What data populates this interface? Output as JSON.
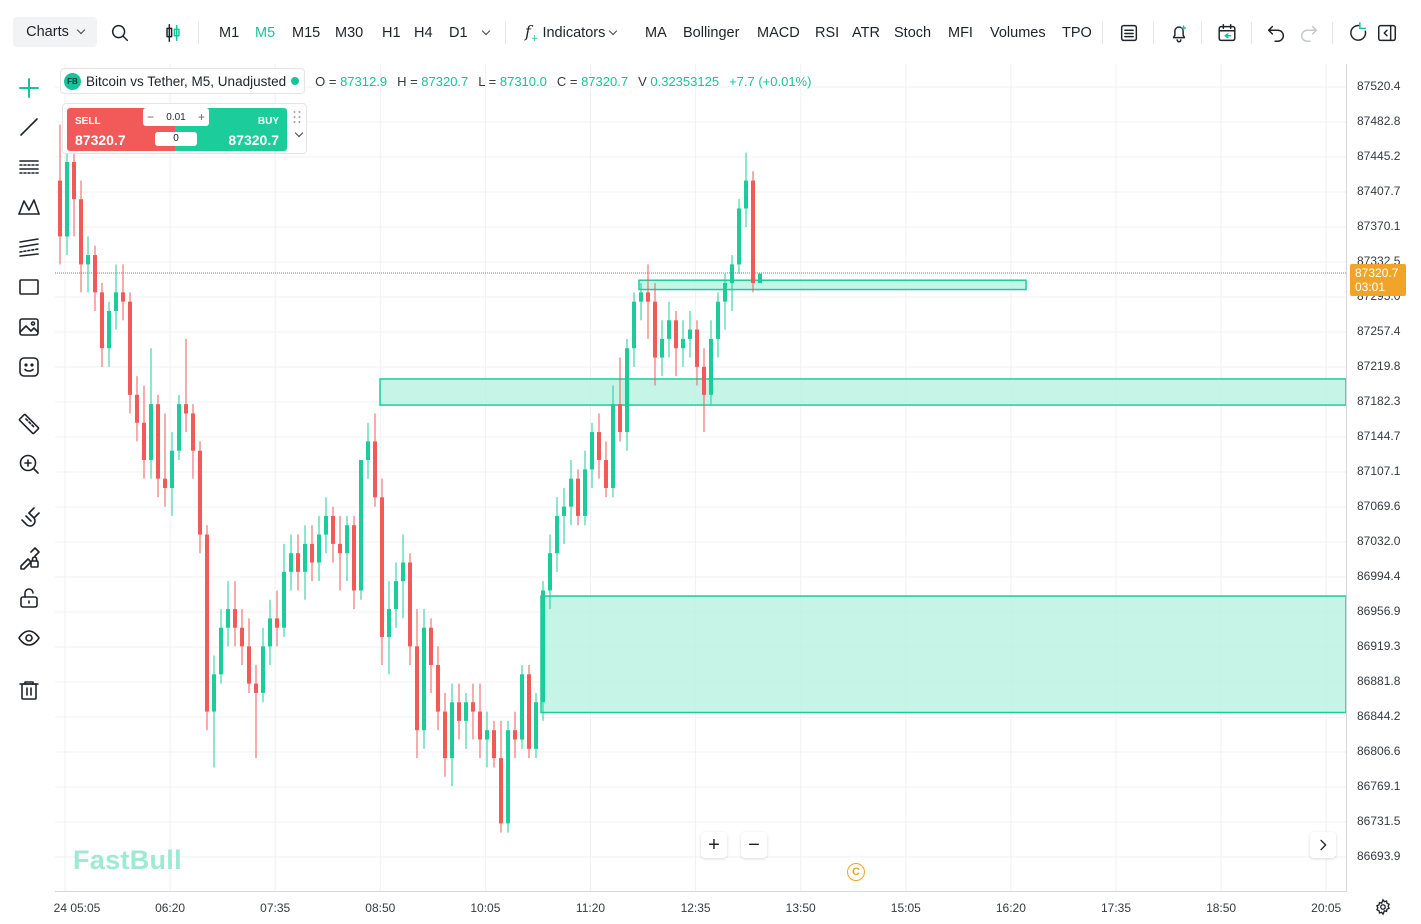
{
  "toolbar": {
    "charts_label": "Charts",
    "timeframes": [
      "M1",
      "M5",
      "M15",
      "M30",
      "H1",
      "H4",
      "D1"
    ],
    "active_timeframe": "M5",
    "indicators_label": "Indicators",
    "indicator_shortcuts": [
      "MA",
      "Bollinger",
      "MACD",
      "RSI",
      "ATR",
      "Stoch",
      "MFI",
      "Volumes",
      "TPO"
    ]
  },
  "legend": {
    "logo_text": "FB",
    "symbol": "Bitcoin vs Tether, M5, Unadjusted",
    "open_label": "O =",
    "open": "87312.9",
    "high_label": "H =",
    "high": "87320.7",
    "low_label": "L =",
    "low": "87310.0",
    "close_label": "C =",
    "close": "87320.7",
    "volume_label": "V",
    "volume": "0.32353125",
    "change": "+7.7 (+0.01%)"
  },
  "trade": {
    "sell_label": "SELL",
    "sell_price": "87320.7",
    "buy_label": "BUY",
    "buy_price": "87320.7",
    "quantity": "0.01",
    "spread": "0"
  },
  "watermark": "FastBull",
  "price_axis": {
    "labels": [
      "87520.4",
      "87482.8",
      "87445.2",
      "87407.7",
      "87370.1",
      "87332.5",
      "87295.0",
      "87257.4",
      "87219.8",
      "87182.3",
      "87144.7",
      "87107.1",
      "87069.6",
      "87032.0",
      "86994.4",
      "86956.9",
      "86919.3",
      "86881.8",
      "86844.2",
      "86806.6",
      "86769.1",
      "86731.5",
      "86693.9"
    ],
    "last_price": "87320.7",
    "countdown": "03:01"
  },
  "time_axis": {
    "labels": [
      "24 05:05",
      "06:20",
      "07:35",
      "08:50",
      "10:05",
      "11:20",
      "12:35",
      "13:50",
      "15:05",
      "16:20",
      "17:35",
      "18:50",
      "20:05"
    ]
  },
  "colors": {
    "up": "#1ccc9b",
    "down": "#f25a5a",
    "zone_fill": "#b8f3e2",
    "zone_stroke": "#1ccc9b",
    "last_price_line": "#e0602f",
    "last_price_tag": "#f2a428"
  },
  "chart_data": {
    "type": "candlestick",
    "symbol": "Bitcoin vs Tether",
    "interval": "M5",
    "ylim": [
      86680,
      87540
    ],
    "x_labels": [
      "24 05:05",
      "06:20",
      "07:35",
      "08:50",
      "10:05",
      "11:20",
      "12:35",
      "13:50",
      "15:05",
      "16:20",
      "17:35",
      "18:50",
      "20:05"
    ],
    "candles": [
      [
        87420,
        87480,
        87330,
        87360
      ],
      [
        87360,
        87470,
        87340,
        87440
      ],
      [
        87440,
        87455,
        87360,
        87400
      ],
      [
        87400,
        87420,
        87300,
        87330
      ],
      [
        87330,
        87360,
        87300,
        87340
      ],
      [
        87340,
        87350,
        87280,
        87300
      ],
      [
        87300,
        87310,
        87220,
        87240
      ],
      [
        87240,
        87290,
        87220,
        87280
      ],
      [
        87280,
        87330,
        87260,
        87300
      ],
      [
        87300,
        87330,
        87270,
        87290
      ],
      [
        87290,
        87300,
        87170,
        87190
      ],
      [
        87190,
        87210,
        87140,
        87160
      ],
      [
        87160,
        87200,
        87100,
        87120
      ],
      [
        87120,
        87240,
        87100,
        87180
      ],
      [
        87180,
        87190,
        87080,
        87100
      ],
      [
        87100,
        87170,
        87070,
        87090
      ],
      [
        87090,
        87150,
        87060,
        87130
      ],
      [
        87130,
        87190,
        87120,
        87180
      ],
      [
        87180,
        87250,
        87150,
        87170
      ],
      [
        87170,
        87180,
        87100,
        87130
      ],
      [
        87130,
        87140,
        87020,
        87040
      ],
      [
        87040,
        87050,
        86830,
        86850
      ],
      [
        86850,
        86910,
        86790,
        86890
      ],
      [
        86890,
        86960,
        86880,
        86940
      ],
      [
        86940,
        86990,
        86920,
        86960
      ],
      [
        86960,
        86990,
        86920,
        86940
      ],
      [
        86940,
        86960,
        86900,
        86920
      ],
      [
        86920,
        86950,
        86870,
        86880
      ],
      [
        86880,
        86900,
        86800,
        86870
      ],
      [
        86870,
        86940,
        86860,
        86920
      ],
      [
        86920,
        86970,
        86900,
        86950
      ],
      [
        86950,
        86980,
        86920,
        86940
      ],
      [
        86940,
        87030,
        86930,
        87000
      ],
      [
        87000,
        87040,
        86980,
        87020
      ],
      [
        87020,
        87040,
        86980,
        87000
      ],
      [
        87000,
        87050,
        86970,
        87030
      ],
      [
        87030,
        87050,
        86990,
        87010
      ],
      [
        87010,
        87060,
        86990,
        87040
      ],
      [
        87040,
        87080,
        87020,
        87060
      ],
      [
        87060,
        87070,
        87010,
        87030
      ],
      [
        87030,
        87060,
        86980,
        87020
      ],
      [
        87020,
        87060,
        86990,
        87050
      ],
      [
        87050,
        87060,
        86960,
        86980
      ],
      [
        86980,
        87120,
        86970,
        87120
      ],
      [
        87120,
        87160,
        87100,
        87140
      ],
      [
        87140,
        87170,
        87070,
        87080
      ],
      [
        87080,
        87100,
        86900,
        86930
      ],
      [
        86930,
        86990,
        86890,
        86960
      ],
      [
        86960,
        87010,
        86940,
        86990
      ],
      [
        86990,
        87040,
        86950,
        87010
      ],
      [
        87010,
        87020,
        86900,
        86920
      ],
      [
        86920,
        86960,
        86800,
        86830
      ],
      [
        86830,
        86960,
        86810,
        86940
      ],
      [
        86940,
        86950,
        86870,
        86900
      ],
      [
        86900,
        86920,
        86830,
        86850
      ],
      [
        86850,
        86870,
        86780,
        86800
      ],
      [
        86800,
        86880,
        86770,
        86860
      ],
      [
        86860,
        86880,
        86820,
        86840
      ],
      [
        86840,
        86870,
        86810,
        86860
      ],
      [
        86860,
        86880,
        86820,
        86850
      ],
      [
        86850,
        86880,
        86800,
        86820
      ],
      [
        86820,
        86850,
        86790,
        86830
      ],
      [
        86830,
        86840,
        86790,
        86800
      ],
      [
        86800,
        86840,
        86720,
        86730
      ],
      [
        86730,
        86840,
        86720,
        86830
      ],
      [
        86830,
        86850,
        86800,
        86820
      ],
      [
        86820,
        86900,
        86810,
        86890
      ],
      [
        86890,
        86900,
        86800,
        86810
      ],
      [
        86810,
        86870,
        86800,
        86860
      ],
      [
        86860,
        86990,
        86840,
        86980
      ],
      [
        86980,
        87040,
        86960,
        87020
      ],
      [
        87020,
        87080,
        87000,
        87060
      ],
      [
        87060,
        87090,
        87030,
        87070
      ],
      [
        87070,
        87120,
        87050,
        87100
      ],
      [
        87100,
        87110,
        87050,
        87060
      ],
      [
        87060,
        87130,
        87050,
        87110
      ],
      [
        87110,
        87160,
        87090,
        87150
      ],
      [
        87150,
        87170,
        87100,
        87120
      ],
      [
        87120,
        87140,
        87080,
        87090
      ],
      [
        87090,
        87200,
        87080,
        87180
      ],
      [
        87180,
        87230,
        87140,
        87150
      ],
      [
        87150,
        87250,
        87130,
        87240
      ],
      [
        87240,
        87300,
        87220,
        87290
      ],
      [
        87290,
        87310,
        87270,
        87300
      ],
      [
        87300,
        87330,
        87250,
        87290
      ],
      [
        87290,
        87310,
        87200,
        87230
      ],
      [
        87230,
        87270,
        87210,
        87250
      ],
      [
        87250,
        87290,
        87230,
        87270
      ],
      [
        87270,
        87280,
        87210,
        87240
      ],
      [
        87240,
        87270,
        87220,
        87250
      ],
      [
        87250,
        87280,
        87230,
        87260
      ],
      [
        87260,
        87270,
        87200,
        87220
      ],
      [
        87220,
        87240,
        87150,
        87190
      ],
      [
        87190,
        87270,
        87180,
        87250
      ],
      [
        87250,
        87300,
        87230,
        87290
      ],
      [
        87290,
        87320,
        87260,
        87310
      ],
      [
        87310,
        87340,
        87280,
        87330
      ],
      [
        87330,
        87400,
        87320,
        87390
      ],
      [
        87390,
        87450,
        87370,
        87420
      ],
      [
        87420,
        87430,
        87300,
        87310
      ],
      [
        87310,
        87320,
        87310,
        87320
      ]
    ],
    "zones": [
      {
        "top": 87313,
        "bottom": 87303,
        "from_candle": 83,
        "to_candle": 138
      },
      {
        "top": 87207,
        "bottom": 87179,
        "from_candle": 46,
        "to": "right"
      },
      {
        "top": 86974,
        "bottom": 86849,
        "from_candle": 69,
        "to": "right"
      }
    ],
    "last_price": 87320.7
  }
}
